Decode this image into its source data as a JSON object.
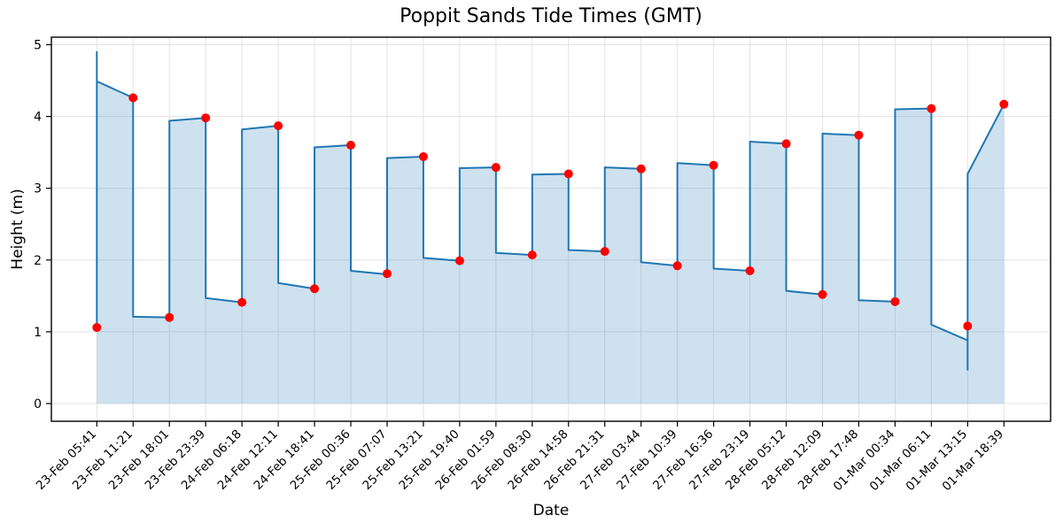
{
  "colors": {
    "line": "#1f77b4",
    "fill": "rgba(31,119,180,0.22)",
    "marker": "#fe0000",
    "grid": "#e3e3e3",
    "spine": "#000000",
    "tick_text": "#000000",
    "background": "#ffffff"
  },
  "chart_data": {
    "type": "line",
    "title": "Poppit Sands Tide Times (GMT)",
    "xlabel": "Date",
    "ylabel": "Height (m)",
    "grid": true,
    "legend": false,
    "marker_style": "red-circle",
    "y_ticks": [
      0,
      1,
      2,
      3,
      4,
      5
    ],
    "ylim": [
      -0.25,
      5.1
    ],
    "categories": [
      "23-Feb 05:41",
      "23-Feb 11:21",
      "23-Feb 18:01",
      "23-Feb 23:39",
      "24-Feb 06:18",
      "24-Feb 12:11",
      "24-Feb 18:41",
      "25-Feb 00:36",
      "25-Feb 07:07",
      "25-Feb 13:21",
      "25-Feb 19:40",
      "26-Feb 01:59",
      "26-Feb 08:30",
      "26-Feb 14:58",
      "26-Feb 21:31",
      "27-Feb 03:44",
      "27-Feb 10:39",
      "27-Feb 16:36",
      "27-Feb 23:19",
      "28-Feb 05:12",
      "28-Feb 12:09",
      "28-Feb 17:48",
      "01-Mar 00:34",
      "01-Mar 06:11",
      "01-Mar 13:15",
      "01-Mar 18:39"
    ],
    "values": [
      1.06,
      4.26,
      1.2,
      3.98,
      1.41,
      3.87,
      1.6,
      3.6,
      1.81,
      3.44,
      1.99,
      3.29,
      2.07,
      3.2,
      2.12,
      3.27,
      1.92,
      3.32,
      1.85,
      3.62,
      1.52,
      3.74,
      1.42,
      4.11,
      1.08,
      4.17
    ],
    "line_path": [
      [
        1,
        1.06
      ],
      [
        1,
        4.9
      ],
      [
        1,
        4.49
      ],
      [
        2,
        4.26
      ],
      [
        2,
        1.21
      ],
      [
        3,
        1.2
      ],
      [
        3,
        3.94
      ],
      [
        4,
        3.98
      ],
      [
        4,
        1.47
      ],
      [
        5,
        1.41
      ],
      [
        5,
        3.82
      ],
      [
        6,
        3.87
      ],
      [
        6,
        1.68
      ],
      [
        7,
        1.6
      ],
      [
        7,
        3.57
      ],
      [
        8,
        3.6
      ],
      [
        8,
        1.85
      ],
      [
        9,
        1.8
      ],
      [
        9,
        3.42
      ],
      [
        10,
        3.44
      ],
      [
        10,
        2.03
      ],
      [
        11,
        1.99
      ],
      [
        11,
        3.28
      ],
      [
        12,
        3.29
      ],
      [
        12,
        2.1
      ],
      [
        13,
        2.07
      ],
      [
        13,
        3.19
      ],
      [
        14,
        3.2
      ],
      [
        14,
        2.14
      ],
      [
        15,
        2.12
      ],
      [
        15,
        3.29
      ],
      [
        16,
        3.27
      ],
      [
        16,
        1.97
      ],
      [
        17,
        1.92
      ],
      [
        17,
        3.35
      ],
      [
        18,
        3.32
      ],
      [
        18,
        1.88
      ],
      [
        19,
        1.85
      ],
      [
        19,
        3.65
      ],
      [
        20,
        3.62
      ],
      [
        20,
        1.57
      ],
      [
        21,
        1.52
      ],
      [
        21,
        3.76
      ],
      [
        22,
        3.74
      ],
      [
        22,
        1.44
      ],
      [
        23,
        1.42
      ],
      [
        23,
        4.1
      ],
      [
        24,
        4.11
      ],
      [
        24,
        1.1
      ],
      [
        25,
        0.88
      ],
      [
        25,
        0.47
      ],
      [
        25,
        3.2
      ],
      [
        26,
        4.17
      ]
    ]
  }
}
